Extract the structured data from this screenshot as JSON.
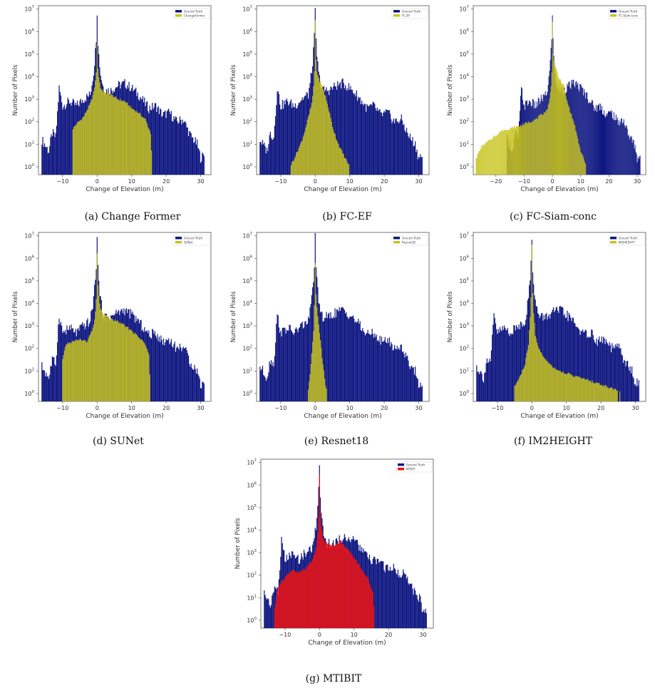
{
  "colors": {
    "ground_truth": "#0d1580",
    "prediction_yellow": "#c8c41e",
    "prediction_red": "#ee1111",
    "axis": "#555555"
  },
  "chart_data": [
    {
      "type": "histogram",
      "id": "a",
      "caption": "(a) Change Former",
      "xlabel": "Change of Elevation (m)",
      "ylabel": "Number of Pixels",
      "xlim": [
        -17,
        33
      ],
      "xticks": [
        -10,
        0,
        10,
        20,
        30
      ],
      "yscale": "log",
      "yticks_exp": [
        0,
        1,
        2,
        3,
        4,
        5,
        6,
        7
      ],
      "legend": {
        "position": "top-right",
        "entries": [
          "Ground Truth",
          "ChangeFormer"
        ]
      },
      "series": [
        {
          "name": "Ground Truth",
          "color": "#0d1580",
          "role": "truth",
          "x": [
            -16,
            -14,
            -13,
            -12,
            -11,
            -10,
            -8,
            -6,
            -4,
            -2,
            -1,
            -0.3,
            0,
            0.3,
            1,
            2,
            4,
            6,
            8,
            10,
            12,
            15,
            17,
            19,
            21,
            23,
            25,
            27,
            29,
            30,
            31
          ],
          "log10": [
            1.2,
            0.7,
            1.5,
            1.3,
            3.5,
            2.7,
            2.9,
            2.7,
            3.0,
            3.2,
            4.2,
            5.5,
            6.9,
            5.3,
            4.1,
            3.4,
            3.4,
            3.6,
            3.7,
            3.5,
            3.2,
            2.6,
            2.7,
            2.3,
            2.4,
            2.0,
            2.1,
            1.4,
            1.0,
            0.4,
            0.5
          ]
        },
        {
          "name": "ChangeFormer",
          "color": "#c8c41e",
          "role": "prediction",
          "x": [
            -7,
            -6,
            -4,
            -2,
            -1,
            -0.3,
            0,
            0.3,
            1,
            2,
            4,
            6,
            8,
            10,
            12,
            14,
            15.5,
            16
          ],
          "log10": [
            1.7,
            1.9,
            2.2,
            2.8,
            3.3,
            4.0,
            5.4,
            4.2,
            3.5,
            3.3,
            3.2,
            3.0,
            2.9,
            2.6,
            2.4,
            2.1,
            1.5,
            0
          ]
        }
      ]
    },
    {
      "type": "histogram",
      "id": "b",
      "caption": "(b) FC-EF",
      "xlabel": "Change of Elevation (m)",
      "ylabel": "Number of Pixels",
      "xlim": [
        -17,
        33
      ],
      "xticks": [
        -10,
        0,
        10,
        20,
        30
      ],
      "yscale": "log",
      "yticks_exp": [
        0,
        1,
        2,
        3,
        4,
        5,
        6,
        7
      ],
      "legend": {
        "position": "top-right",
        "entries": [
          "Ground Truth",
          "FC-EF"
        ]
      },
      "series": [
        {
          "name": "Ground Truth",
          "color": "#0d1580",
          "role": "truth",
          "x": [
            -16,
            -14,
            -13,
            -12,
            -11,
            -10,
            -8,
            -6,
            -4,
            -2,
            -1,
            -0.3,
            0,
            0.3,
            1,
            2,
            4,
            6,
            8,
            10,
            12,
            15,
            17,
            19,
            21,
            23,
            25,
            27,
            29,
            30,
            31
          ],
          "log10": [
            1.2,
            0.7,
            1.5,
            1.3,
            3.5,
            2.7,
            2.9,
            2.7,
            3.0,
            3.2,
            4.2,
            5.5,
            6.9,
            5.3,
            4.1,
            3.4,
            3.4,
            3.6,
            3.7,
            3.5,
            3.2,
            2.6,
            2.7,
            2.3,
            2.4,
            2.0,
            2.1,
            1.4,
            1.0,
            0.4,
            0.5
          ]
        },
        {
          "name": "FC-EF",
          "color": "#c8c41e",
          "role": "prediction",
          "x": [
            -7,
            -6,
            -4,
            -3,
            -2,
            -1,
            -0.3,
            0,
            0.3,
            1,
            2,
            3,
            4,
            5,
            6,
            7,
            8,
            9,
            10
          ],
          "log10": [
            0.1,
            0.4,
            1.1,
            1.6,
            2.2,
            2.8,
            3.8,
            6.5,
            4.4,
            3.9,
            3.6,
            3.1,
            2.5,
            1.8,
            1.3,
            0.9,
            0.6,
            0.3,
            0
          ]
        }
      ]
    },
    {
      "type": "histogram",
      "id": "c",
      "caption": "(c) FC-Siam-conc",
      "xlabel": "Change of Elevation (m)",
      "ylabel": "Number of Pixels",
      "xlim": [
        -28,
        33
      ],
      "xticks": [
        -20,
        -10,
        0,
        10,
        20,
        30
      ],
      "yscale": "log",
      "yticks_exp": [
        0,
        1,
        2,
        3,
        4,
        5,
        6,
        7
      ],
      "legend": {
        "position": "top-right",
        "entries": [
          "Ground Truth",
          "FC-Siam-conc"
        ]
      },
      "series": [
        {
          "name": "Ground Truth",
          "color": "#0d1580",
          "role": "truth",
          "x": [
            -16,
            -14,
            -13,
            -12,
            -11,
            -10,
            -8,
            -6,
            -4,
            -2,
            -1,
            -0.3,
            0,
            0.3,
            1,
            2,
            4,
            6,
            8,
            10,
            12,
            15,
            17,
            19,
            21,
            23,
            25,
            27,
            29,
            30,
            31
          ],
          "log10": [
            1.2,
            0.7,
            1.5,
            1.3,
            3.5,
            2.7,
            2.9,
            2.7,
            3.0,
            3.2,
            4.2,
            5.5,
            6.9,
            5.3,
            4.1,
            3.4,
            3.4,
            3.6,
            3.7,
            3.5,
            3.2,
            2.6,
            2.7,
            2.3,
            2.4,
            2.0,
            2.1,
            1.4,
            1.0,
            0.4,
            0.5
          ]
        },
        {
          "name": "FC-Siam-conc",
          "color": "#c8c41e",
          "role": "prediction",
          "x": [
            -27,
            -25,
            -22,
            -20,
            -18,
            -15,
            -12,
            -10,
            -8,
            -6,
            -4,
            -2,
            -1,
            -0.3,
            0,
            0.3,
            1,
            2,
            3,
            4,
            5,
            6,
            7,
            8,
            9,
            10,
            11,
            12
          ],
          "log10": [
            0.4,
            0.9,
            1.2,
            1.4,
            1.6,
            1.7,
            1.8,
            1.9,
            2.0,
            2.1,
            2.3,
            2.5,
            3.0,
            3.8,
            6.4,
            4.8,
            4.5,
            4.0,
            3.8,
            3.6,
            3.0,
            2.6,
            2.2,
            1.8,
            1.2,
            0.7,
            0.4,
            0
          ]
        }
      ]
    },
    {
      "type": "histogram",
      "id": "d",
      "caption": "(d) SUNet",
      "xlabel": "Change of Elevation (m)",
      "ylabel": "Number of Pixels",
      "xlim": [
        -17,
        33
      ],
      "xticks": [
        -10,
        0,
        10,
        20,
        30
      ],
      "yscale": "log",
      "yticks_exp": [
        0,
        1,
        2,
        3,
        4,
        5,
        6,
        7
      ],
      "legend": {
        "position": "top-right",
        "entries": [
          "Ground Truth",
          "SUNet"
        ]
      },
      "series": [
        {
          "name": "Ground Truth",
          "color": "#0d1580",
          "role": "truth",
          "x": [
            -16,
            -14,
            -13,
            -12,
            -11,
            -10,
            -8,
            -6,
            -4,
            -2,
            -1,
            -0.3,
            0,
            0.3,
            1,
            2,
            4,
            6,
            8,
            10,
            12,
            15,
            17,
            19,
            21,
            23,
            25,
            27,
            29,
            30,
            31
          ],
          "log10": [
            1.2,
            0.7,
            1.5,
            1.3,
            3.5,
            2.7,
            2.9,
            2.7,
            3.0,
            3.2,
            4.2,
            5.5,
            6.9,
            5.3,
            4.1,
            3.4,
            3.4,
            3.6,
            3.7,
            3.5,
            3.2,
            2.6,
            2.7,
            2.3,
            2.4,
            2.0,
            2.1,
            1.4,
            1.0,
            0.4,
            0.5
          ]
        },
        {
          "name": "SUNet",
          "color": "#c8c41e",
          "role": "prediction",
          "x": [
            -10,
            -9,
            -7,
            -5,
            -3,
            -2,
            -1,
            -0.3,
            0,
            0.3,
            1,
            2,
            4,
            6,
            8,
            10,
            12,
            14,
            15,
            15.5
          ],
          "log10": [
            1.5,
            2.2,
            2.3,
            2.4,
            2.3,
            2.6,
            3.0,
            3.8,
            6.2,
            4.6,
            3.7,
            3.5,
            3.3,
            3.2,
            3.0,
            2.8,
            2.5,
            2.2,
            1.8,
            0
          ]
        }
      ]
    },
    {
      "type": "histogram",
      "id": "e",
      "caption": "(e) Resnet18",
      "xlabel": "Change of Elevation (m)",
      "ylabel": "Number of Pixels",
      "xlim": [
        -17,
        33
      ],
      "xticks": [
        -10,
        0,
        10,
        20,
        30
      ],
      "yscale": "log",
      "yticks_exp": [
        0,
        1,
        2,
        3,
        4,
        5,
        6,
        7
      ],
      "legend": {
        "position": "top-right",
        "entries": [
          "Ground Truth",
          "Resnet18"
        ]
      },
      "series": [
        {
          "name": "Ground Truth",
          "color": "#0d1580",
          "role": "truth",
          "x": [
            -16,
            -14,
            -13,
            -12,
            -11,
            -10,
            -8,
            -6,
            -4,
            -2,
            -1,
            -0.3,
            0,
            0.3,
            1,
            2,
            4,
            6,
            8,
            10,
            12,
            15,
            17,
            19,
            21,
            23,
            25,
            27,
            29,
            30,
            31
          ],
          "log10": [
            1.2,
            0.7,
            1.5,
            1.3,
            3.5,
            2.7,
            2.9,
            2.7,
            3.0,
            3.2,
            4.2,
            5.5,
            6.9,
            5.3,
            4.1,
            3.4,
            3.4,
            3.6,
            3.7,
            3.5,
            3.2,
            2.6,
            2.7,
            2.3,
            2.4,
            2.0,
            2.1,
            1.4,
            1.0,
            0.4,
            0.5
          ]
        },
        {
          "name": "Resnet18",
          "color": "#c8c41e",
          "role": "prediction",
          "x": [
            -2,
            -1.5,
            -1,
            -0.5,
            -0.3,
            0,
            0.3,
            0.8,
            1.2,
            1.6,
            2,
            2.5,
            3,
            3.5
          ],
          "log10": [
            0.2,
            0.8,
            1.8,
            2.8,
            3.6,
            5.8,
            4.2,
            3.4,
            2.8,
            2.2,
            1.6,
            1.0,
            0.4,
            0
          ]
        }
      ]
    },
    {
      "type": "histogram",
      "id": "f",
      "caption": "(f) IM2HEIGHT",
      "xlabel": "Change of Elevation (m)",
      "ylabel": "Number of Pixels",
      "xlim": [
        -17,
        33
      ],
      "xticks": [
        -10,
        0,
        10,
        20,
        30
      ],
      "yscale": "log",
      "yticks_exp": [
        0,
        1,
        2,
        3,
        4,
        5,
        6,
        7
      ],
      "legend": {
        "position": "top-right",
        "entries": [
          "Ground Truth",
          "IM2HEIGHT"
        ]
      },
      "series": [
        {
          "name": "Ground Truth",
          "color": "#0d1580",
          "role": "truth",
          "x": [
            -16,
            -14,
            -13,
            -12,
            -11,
            -10,
            -8,
            -6,
            -4,
            -2,
            -1,
            -0.3,
            0,
            0.3,
            1,
            2,
            4,
            6,
            8,
            10,
            12,
            15,
            17,
            19,
            21,
            23,
            25,
            27,
            29,
            30,
            31
          ],
          "log10": [
            1.2,
            0.7,
            1.5,
            1.3,
            3.5,
            2.7,
            2.9,
            2.7,
            3.0,
            3.2,
            4.2,
            5.5,
            6.9,
            5.3,
            4.1,
            3.4,
            3.4,
            3.6,
            3.7,
            3.5,
            3.2,
            2.6,
            2.7,
            2.3,
            2.4,
            2.0,
            2.1,
            1.4,
            1.0,
            0.4,
            0.5
          ]
        },
        {
          "name": "IM2HEIGHT",
          "color": "#c8c41e",
          "role": "prediction",
          "x": [
            -5,
            -4,
            -3,
            -2,
            -1,
            -0.3,
            0,
            0.3,
            1,
            2,
            3,
            4,
            6,
            8,
            10,
            12,
            14,
            16,
            18,
            20,
            22,
            24,
            26
          ],
          "log10": [
            0.3,
            0.6,
            0.9,
            1.3,
            2.2,
            3.8,
            6.6,
            4.0,
            2.6,
            2.0,
            1.7,
            1.5,
            1.2,
            1.0,
            0.9,
            0.8,
            0.7,
            0.6,
            0.5,
            0.4,
            0.3,
            0.2,
            0
          ]
        }
      ]
    },
    {
      "type": "histogram",
      "id": "g",
      "caption": "(g) MTIBIT",
      "xlabel": "Change of Elevation (m)",
      "ylabel": "Number of Pixels",
      "xlim": [
        -17,
        33
      ],
      "xticks": [
        -10,
        0,
        10,
        20,
        30
      ],
      "yscale": "log",
      "yticks_exp": [
        0,
        1,
        2,
        3,
        4,
        5,
        6,
        7
      ],
      "legend": {
        "position": "top-right",
        "entries": [
          "Ground Truth",
          "MTBIT"
        ]
      },
      "series": [
        {
          "name": "Ground Truth",
          "color": "#0d1580",
          "role": "truth",
          "x": [
            -16,
            -14,
            -13,
            -12,
            -11,
            -10,
            -8,
            -6,
            -4,
            -2,
            -1,
            -0.3,
            0,
            0.3,
            1,
            2,
            4,
            6,
            8,
            10,
            12,
            15,
            17,
            19,
            21,
            23,
            25,
            27,
            29,
            30,
            31
          ],
          "log10": [
            1.2,
            0.7,
            1.5,
            1.3,
            3.5,
            2.7,
            2.9,
            2.7,
            3.0,
            3.2,
            4.2,
            5.5,
            6.9,
            5.3,
            4.1,
            3.4,
            3.4,
            3.6,
            3.7,
            3.5,
            3.2,
            2.6,
            2.7,
            2.3,
            2.4,
            2.0,
            2.1,
            1.4,
            1.0,
            0.4,
            0.5
          ]
        },
        {
          "name": "MTBIT",
          "color": "#ee1111",
          "role": "prediction",
          "x": [
            -13,
            -12,
            -10,
            -8,
            -6,
            -4,
            -3,
            -2,
            -1,
            -0.3,
            0,
            0.3,
            1,
            2,
            4,
            6,
            8,
            10,
            12,
            14,
            15.5,
            16
          ],
          "log10": [
            0.5,
            1.5,
            1.9,
            2.2,
            2.1,
            2.3,
            2.5,
            2.7,
            3.2,
            4.2,
            6.4,
            4.5,
            3.6,
            3.4,
            3.3,
            3.5,
            3.2,
            2.8,
            2.3,
            1.9,
            1.2,
            0
          ]
        }
      ]
    }
  ]
}
